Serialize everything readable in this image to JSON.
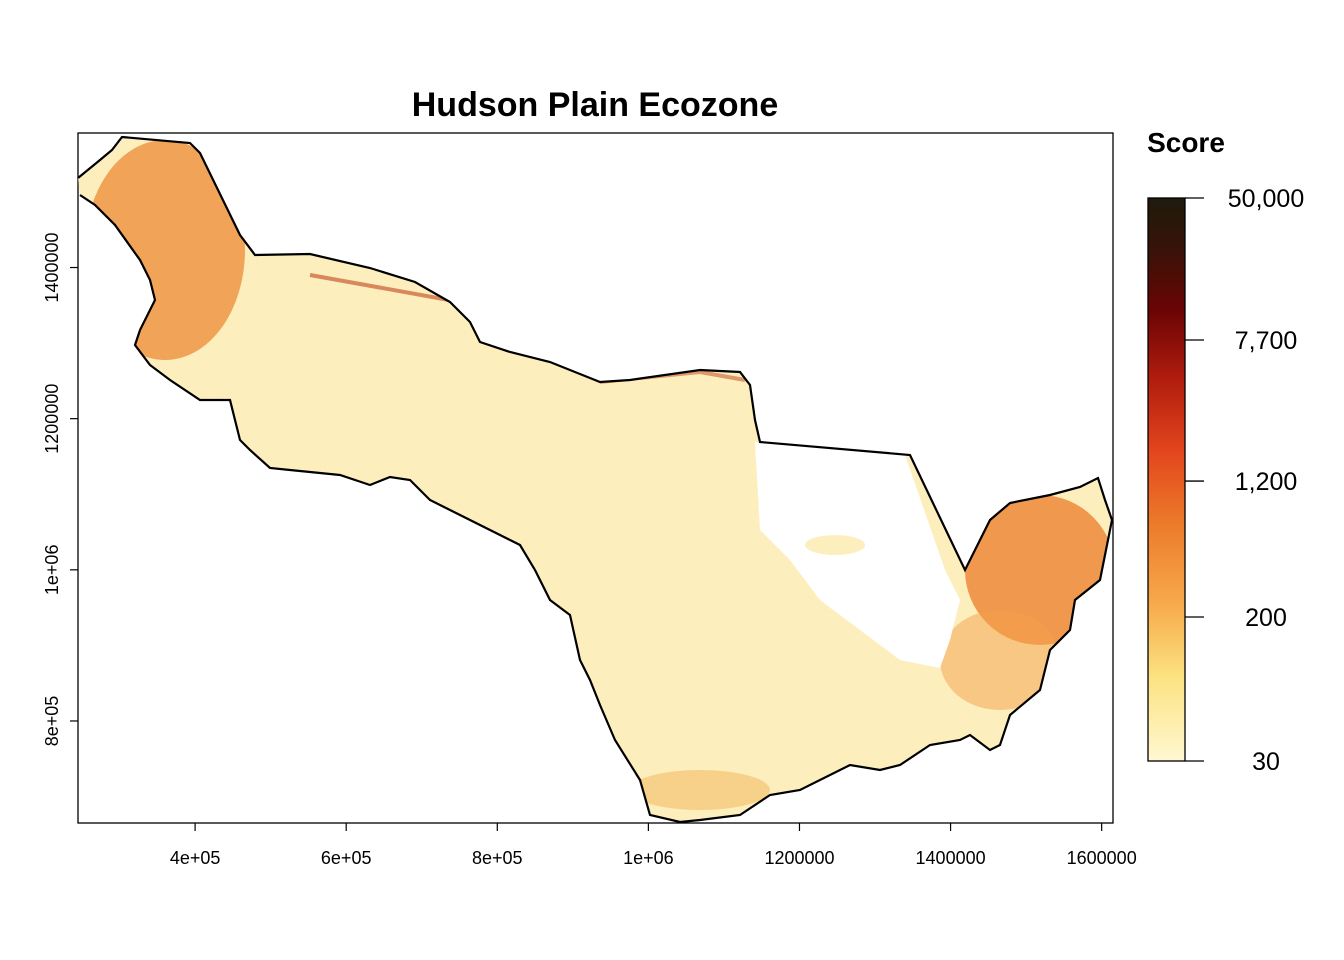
{
  "chart_data": {
    "type": "heatmap",
    "title": "Hudson Plain Ecozone",
    "xlabel": "",
    "ylabel": "",
    "x_ticks": [
      {
        "value": 400000,
        "label": "4e+05"
      },
      {
        "value": 600000,
        "label": "6e+05"
      },
      {
        "value": 800000,
        "label": "8e+05"
      },
      {
        "value": 1000000,
        "label": "1e+06"
      },
      {
        "value": 1200000,
        "label": "1200000"
      },
      {
        "value": 1400000,
        "label": "1400000"
      },
      {
        "value": 1600000,
        "label": "1600000"
      }
    ],
    "y_ticks": [
      {
        "value": 800000,
        "label": "8e+05"
      },
      {
        "value": 1000000,
        "label": "1e+06"
      },
      {
        "value": 1200000,
        "label": "1200000"
      },
      {
        "value": 1400000,
        "label": "1400000"
      }
    ],
    "xlim": [
      245000,
      1615000
    ],
    "ylim": [
      665000,
      1578000
    ],
    "grid": false,
    "legend": {
      "title": "Score",
      "position": "right",
      "scale": "log",
      "labels": [
        {
          "value": 50000,
          "label": "50,000"
        },
        {
          "value": 7700,
          "label": "7,700"
        },
        {
          "value": 1200,
          "label": "1,200"
        },
        {
          "value": 200,
          "label": "200"
        },
        {
          "value": 30,
          "label": "30"
        }
      ],
      "colors": [
        "#fff8d2",
        "#fce280",
        "#f7a94a",
        "#ec7b2b",
        "#e3461d",
        "#b01c0e",
        "#6b0404",
        "#3b1208",
        "#1e1a0c"
      ]
    }
  }
}
